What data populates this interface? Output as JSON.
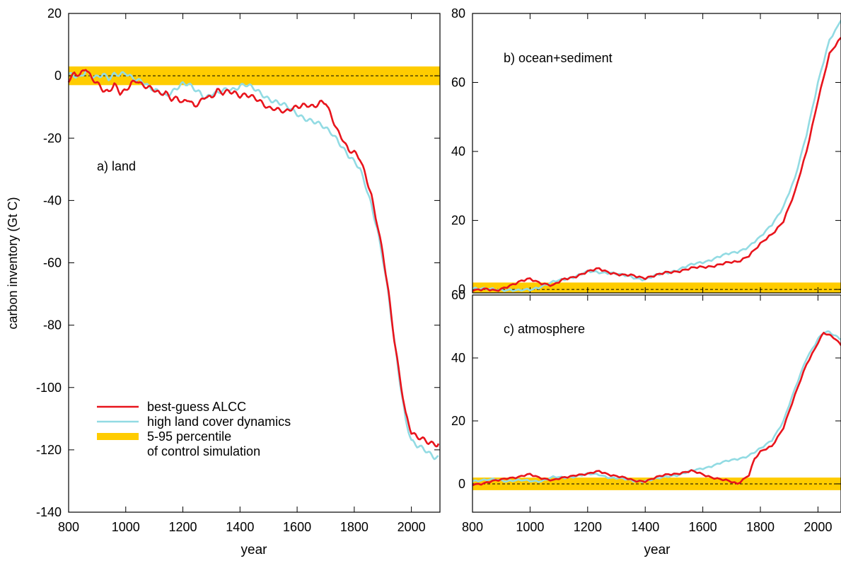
{
  "y_axis_label": "carbon inventory (Gt C)",
  "legend": {
    "entries": [
      {
        "label": "best-guess ALCC",
        "color": "#e8141c",
        "kind": "line"
      },
      {
        "label": "high land cover dynamics",
        "color": "#92dbe3",
        "kind": "line"
      },
      {
        "label": "5-95 percentile",
        "label2": "of control simulation",
        "color": "#ffcc00",
        "kind": "band"
      }
    ]
  },
  "chart_data": [
    {
      "type": "line",
      "title": "a) land",
      "xlabel": "year",
      "ylabel": "carbon inventory (Gt C)",
      "xlim": [
        800,
        2100
      ],
      "ylim": [
        -140,
        20
      ],
      "xticks": [
        800,
        1000,
        1200,
        1400,
        1600,
        1800,
        2000
      ],
      "yticks": [
        -140,
        -120,
        -100,
        -80,
        -60,
        -40,
        -20,
        0,
        20
      ],
      "band": [
        -3,
        3
      ],
      "series": [
        {
          "name": "best-guess ALCC",
          "color": "#e8141c",
          "x": [
            800,
            820,
            840,
            860,
            880,
            900,
            920,
            940,
            960,
            980,
            1000,
            1020,
            1040,
            1060,
            1080,
            1100,
            1120,
            1140,
            1160,
            1180,
            1200,
            1220,
            1240,
            1260,
            1280,
            1300,
            1320,
            1340,
            1360,
            1380,
            1400,
            1420,
            1440,
            1460,
            1480,
            1500,
            1520,
            1540,
            1560,
            1580,
            1600,
            1620,
            1640,
            1660,
            1680,
            1700,
            1720,
            1740,
            1760,
            1780,
            1800,
            1820,
            1840,
            1860,
            1880,
            1900,
            1920,
            1940,
            1960,
            1980,
            2000,
            2020,
            2040,
            2060,
            2080,
            2095
          ],
          "y": [
            -1,
            1,
            0,
            2,
            -1,
            -2,
            -4,
            -5,
            -3,
            -6,
            -5,
            -2,
            -1,
            -3,
            -4,
            -5,
            -6,
            -5,
            -7,
            -7,
            -9,
            -8,
            -10,
            -8,
            -6,
            -7,
            -5,
            -6,
            -5,
            -5,
            -6,
            -6,
            -7,
            -8,
            -9,
            -10,
            -10,
            -11,
            -12,
            -11,
            -10,
            -9,
            -9,
            -10,
            -9,
            -9,
            -13,
            -17,
            -20,
            -24,
            -25,
            -27,
            -32,
            -38,
            -47,
            -57,
            -70,
            -85,
            -97,
            -108,
            -114,
            -116,
            -117,
            -118,
            -118,
            -118
          ]
        },
        {
          "name": "high land cover dynamics",
          "color": "#92dbe3",
          "x": [
            800,
            820,
            840,
            860,
            880,
            900,
            920,
            940,
            960,
            980,
            1000,
            1020,
            1040,
            1060,
            1080,
            1100,
            1120,
            1140,
            1160,
            1180,
            1200,
            1220,
            1240,
            1260,
            1280,
            1300,
            1320,
            1340,
            1360,
            1380,
            1400,
            1420,
            1440,
            1460,
            1480,
            1500,
            1520,
            1540,
            1560,
            1580,
            1600,
            1620,
            1640,
            1660,
            1680,
            1700,
            1720,
            1740,
            1760,
            1780,
            1800,
            1820,
            1840,
            1860,
            1880,
            1900,
            1920,
            1940,
            1960,
            1980,
            2000,
            2020,
            2040,
            2060,
            2080,
            2095
          ],
          "y": [
            1,
            0,
            -1,
            1,
            0,
            0,
            1,
            -1,
            0,
            0,
            1,
            0,
            -1,
            -2,
            -4,
            -5,
            -5,
            -6,
            -5,
            -4,
            -3,
            -3,
            -4,
            -5,
            -7,
            -6,
            -6,
            -5,
            -4,
            -4,
            -3,
            -3,
            -4,
            -5,
            -6,
            -7,
            -8,
            -9,
            -10,
            -11,
            -12,
            -13,
            -14,
            -15,
            -16,
            -17,
            -18,
            -20,
            -23,
            -26,
            -28,
            -30,
            -35,
            -41,
            -49,
            -59,
            -71,
            -85,
            -98,
            -110,
            -117,
            -119,
            -120,
            -121,
            -122,
            -122
          ]
        }
      ]
    },
    {
      "type": "line",
      "title": "b) ocean+sediment",
      "xlabel": "",
      "ylabel": "",
      "xlim": [
        800,
        2080
      ],
      "ylim": [
        -1,
        80
      ],
      "yticks": [
        0,
        20,
        40,
        60,
        80
      ],
      "band": [
        -1,
        2
      ],
      "series": [
        {
          "name": "best-guess ALCC",
          "color": "#e8141c",
          "x": [
            800,
            840,
            880,
            920,
            960,
            1000,
            1040,
            1080,
            1120,
            1160,
            1200,
            1240,
            1280,
            1320,
            1360,
            1400,
            1440,
            1480,
            1520,
            1560,
            1600,
            1640,
            1680,
            1720,
            1760,
            1800,
            1840,
            1880,
            1920,
            1960,
            2000,
            2040,
            2080
          ],
          "y": [
            0,
            0,
            -0.5,
            1,
            2,
            3,
            2,
            1,
            3,
            4,
            5,
            6,
            5,
            4,
            4,
            3.5,
            4,
            5,
            5.5,
            6,
            6.5,
            7,
            7.5,
            8,
            10,
            13,
            16,
            20,
            28,
            40,
            55,
            68,
            73
          ]
        },
        {
          "name": "high land cover dynamics",
          "color": "#92dbe3",
          "x": [
            800,
            840,
            880,
            920,
            960,
            1000,
            1040,
            1080,
            1120,
            1160,
            1200,
            1240,
            1280,
            1320,
            1360,
            1400,
            1440,
            1480,
            1520,
            1560,
            1600,
            1640,
            1680,
            1720,
            1760,
            1800,
            1840,
            1880,
            1920,
            1960,
            2000,
            2040,
            2080
          ],
          "y": [
            0.5,
            0,
            0,
            0,
            -0.5,
            0,
            1,
            2,
            3,
            4,
            5,
            5,
            5,
            4,
            3.5,
            3,
            4,
            5,
            6,
            7,
            8,
            9,
            10,
            11,
            12.5,
            15,
            19,
            24,
            32,
            45,
            60,
            72,
            78
          ]
        }
      ]
    },
    {
      "type": "line",
      "title": "c) atmosphere",
      "xlabel": "year",
      "ylabel": "",
      "xlim": [
        800,
        2080
      ],
      "ylim": [
        -9,
        60
      ],
      "xticks": [
        800,
        1000,
        1200,
        1400,
        1600,
        1800,
        2000
      ],
      "yticks": [
        0,
        20,
        40,
        60
      ],
      "band": [
        -2,
        2
      ],
      "series": [
        {
          "name": "best-guess ALCC",
          "color": "#e8141c",
          "x": [
            800,
            840,
            880,
            920,
            960,
            1000,
            1040,
            1080,
            1120,
            1160,
            1200,
            1240,
            1280,
            1320,
            1360,
            1400,
            1440,
            1480,
            1520,
            1560,
            1600,
            1640,
            1680,
            1720,
            1760,
            1780,
            1800,
            1840,
            1880,
            1920,
            1960,
            2000,
            2020,
            2040,
            2060,
            2080
          ],
          "y": [
            0,
            0,
            1,
            2,
            2,
            3,
            2,
            1,
            2,
            3,
            3,
            4,
            3,
            2,
            1,
            1,
            2,
            3,
            3.5,
            4,
            3,
            2,
            1,
            0,
            3,
            8,
            10,
            12,
            18,
            28,
            38,
            45,
            48,
            47,
            46,
            44
          ]
        },
        {
          "name": "high land cover dynamics",
          "color": "#92dbe3",
          "x": [
            800,
            840,
            880,
            920,
            960,
            1000,
            1040,
            1080,
            1120,
            1160,
            1200,
            1240,
            1280,
            1320,
            1360,
            1400,
            1440,
            1480,
            1520,
            1560,
            1600,
            1640,
            1680,
            1720,
            1760,
            1780,
            1800,
            1840,
            1880,
            1920,
            1960,
            2000,
            2020,
            2040,
            2060,
            2080
          ],
          "y": [
            1,
            1,
            1.5,
            1,
            1,
            1,
            1,
            2,
            2,
            2.5,
            3,
            3,
            2,
            1.5,
            1,
            1,
            1.5,
            2.5,
            3,
            4,
            5,
            6,
            7,
            8,
            9,
            10,
            11,
            14,
            20,
            30,
            40,
            46,
            48,
            48,
            47,
            46
          ]
        }
      ]
    }
  ]
}
